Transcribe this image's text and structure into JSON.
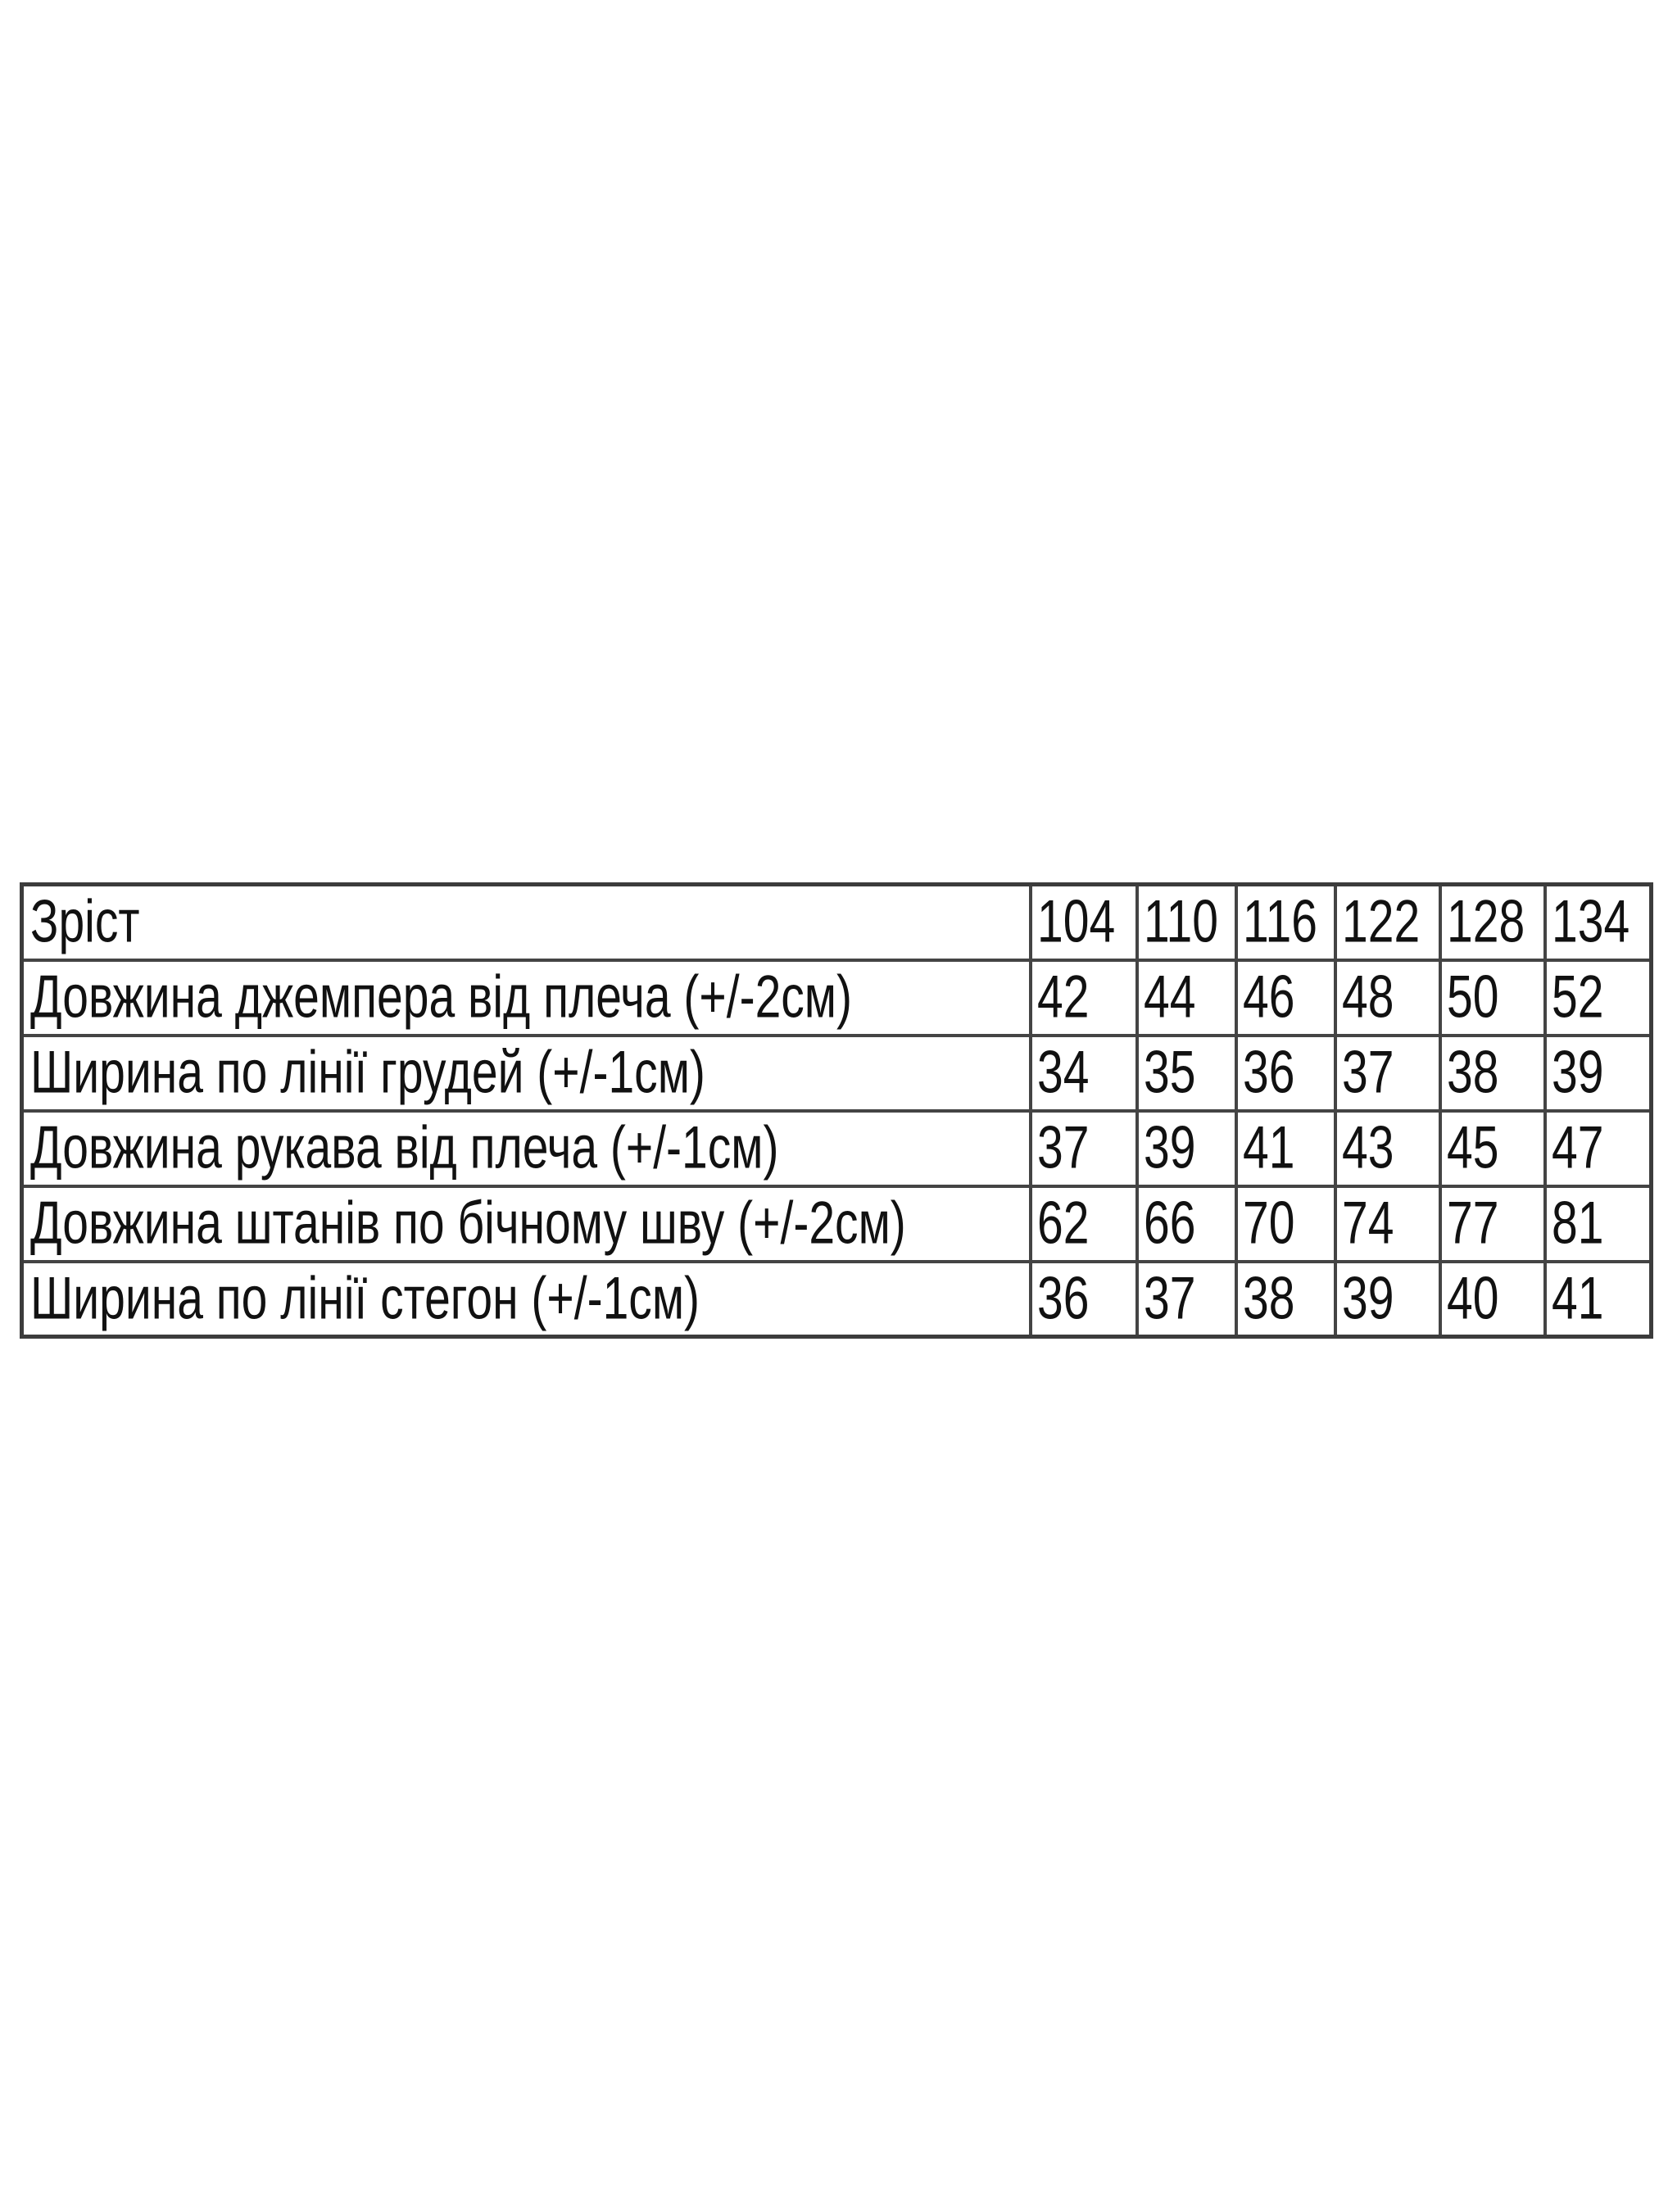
{
  "size_table": {
    "header": {
      "label": "Зріст",
      "sizes": [
        "104",
        "110",
        "116",
        "122",
        "128",
        "134"
      ]
    },
    "rows": [
      {
        "label": "Довжина джемпера від плеча (+/-2см)",
        "values": [
          "42",
          "44",
          "46",
          "48",
          "50",
          "52"
        ]
      },
      {
        "label": "Ширина по лінії грудей (+/-1см)",
        "values": [
          "34",
          "35",
          "36",
          "37",
          "38",
          "39"
        ]
      },
      {
        "label": "Довжина рукава від плеча (+/-1см)",
        "values": [
          "37",
          "39",
          "41",
          "43",
          "45",
          "47"
        ]
      },
      {
        "label": "Довжина штанів по бічному шву (+/-2см)",
        "values": [
          "62",
          "66",
          "70",
          "74",
          "77",
          "81"
        ]
      },
      {
        "label": "Ширина по лінії стегон (+/-1см)",
        "values": [
          "36",
          "37",
          "38",
          "39",
          "40",
          "41"
        ]
      }
    ]
  }
}
